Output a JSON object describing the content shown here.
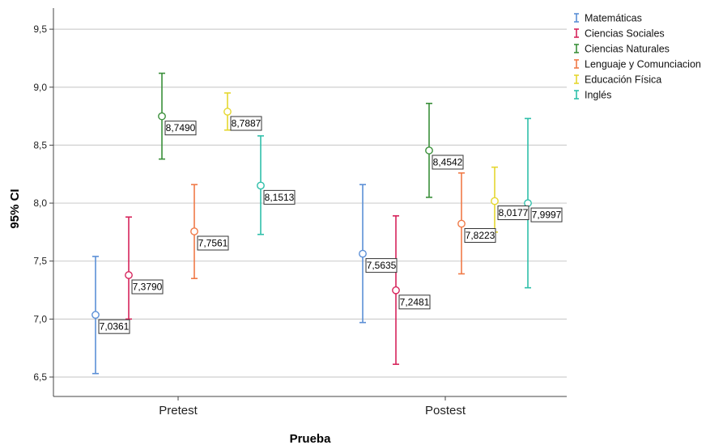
{
  "chart_data": {
    "type": "errorbar",
    "categories": [
      "Pretest",
      "Postest"
    ],
    "xlabel": "Prueba",
    "ylabel": "95% CI",
    "ylim": [
      6.3,
      9.7
    ],
    "yticks": [
      "6,5",
      "7,0",
      "7,5",
      "8,0",
      "8,5",
      "9,0",
      "9,5"
    ],
    "ytick_values": [
      6.5,
      7.0,
      7.5,
      8.0,
      8.5,
      9.0,
      9.5
    ],
    "grid": true,
    "legend_position": "top-right",
    "series": [
      {
        "name": "Matemáticas",
        "color": "#5b8fd6",
        "mean": [
          7.0361,
          7.5635
        ],
        "lower": [
          6.53,
          6.97
        ],
        "upper": [
          7.54,
          8.16
        ],
        "labels": [
          "7,0361",
          "7,5635"
        ]
      },
      {
        "name": "Ciencias Sociales",
        "color": "#d6245b",
        "mean": [
          7.379,
          7.2481
        ],
        "lower": [
          7.0,
          6.61
        ],
        "upper": [
          7.88,
          7.89
        ],
        "labels": [
          "7,3790",
          "7,2481"
        ]
      },
      {
        "name": "Ciencias Naturales",
        "color": "#3a8f3a",
        "mean": [
          8.749,
          8.4542
        ],
        "lower": [
          8.38,
          8.05
        ],
        "upper": [
          9.12,
          8.86
        ],
        "labels": [
          "8,7490",
          "8,4542"
        ]
      },
      {
        "name": "Lenguaje y Comunciacion",
        "color": "#f07a47",
        "mean": [
          7.7561,
          7.8223
        ],
        "lower": [
          7.35,
          7.39
        ],
        "upper": [
          8.16,
          8.26
        ],
        "labels": [
          "7,7561",
          "7,8223"
        ]
      },
      {
        "name": "Educación Física",
        "color": "#e5d72f",
        "mean": [
          8.7887,
          8.0177
        ],
        "lower": [
          8.63,
          7.75
        ],
        "upper": [
          8.95,
          8.31
        ],
        "labels": [
          "8,7887",
          "8,0177"
        ]
      },
      {
        "name": "Inglés",
        "color": "#2fbfaa",
        "mean": [
          8.1513,
          7.9997
        ],
        "lower": [
          7.73,
          7.27
        ],
        "upper": [
          8.58,
          8.73
        ],
        "labels": [
          "8,1513",
          "7,9997"
        ]
      }
    ]
  }
}
